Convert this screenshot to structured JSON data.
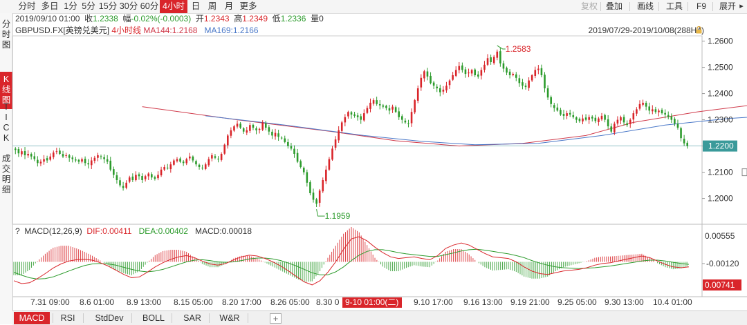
{
  "toolbar": {
    "timeframes": [
      "分时",
      "多日",
      "1分",
      "5分",
      "15分",
      "30分",
      "60分",
      "4小时",
      "日",
      "周",
      "月",
      "更多"
    ],
    "active_timeframe": "4小时",
    "right_tools": {
      "fuquan": "复权",
      "stack": "叠加",
      "draw": "画线",
      "tools": "工具",
      "f9": "F9",
      "expand": "展开"
    },
    "expand_arrow_icon": "chevron-right-icon"
  },
  "ohlc": {
    "datetime": "2019/09/10 01:00",
    "close_label": "收",
    "close": "1.2338",
    "change_label": "幅",
    "change": "-0.02%(-0.0003)",
    "open_label": "开",
    "open": "1.2343",
    "high_label": "高",
    "high": "1.2349",
    "low_label": "低",
    "low": "1.2336",
    "vol_label": "量",
    "vol": "0"
  },
  "sidebar": {
    "tabs": [
      {
        "chars": [
          "分",
          "时",
          "图"
        ],
        "active": false
      },
      {
        "chars": [
          "K",
          "线",
          "图"
        ],
        "active": true
      },
      {
        "chars": [
          "T",
          "I",
          "C",
          "K"
        ],
        "active": false
      },
      {
        "chars": [
          "成",
          "交",
          "明",
          "细"
        ],
        "active": false
      }
    ]
  },
  "legend": {
    "symbol": "GBPUSD.FX",
    "name": "[英镑兑美元]",
    "period": "4小时线",
    "ma144": "MA144:1.2168",
    "ma169": "MA169:1.2166",
    "range": "2019/07/29-2019/10/08(288H4)"
  },
  "macd_legend": {
    "question": "?",
    "title": "MACD(12,26,9)",
    "dif": "DIF:0.00411",
    "dea": "DEA:0.00402",
    "macd": "MACD:0.00018"
  },
  "price_axis": [
    "1.2600",
    "1.2500",
    "1.2400",
    "1.2300",
    "1.2200",
    "1.2100",
    "1.2000"
  ],
  "macd_axis": {
    "top": "0.00555",
    "mid": "-0.00120",
    "current": "0.00741"
  },
  "x_axis": {
    "labels": [
      "7.31 09:00",
      "8.6 01:00",
      "8.9 13:00",
      "8.15 05:00",
      "8.20 17:00",
      "8.26 05:00",
      "8.30 0",
      "9.10 17:00",
      "9.16 13:00",
      "9.19 21:00",
      "9.25 05:00",
      "9.30 13:00",
      "10.4 01:00"
    ],
    "cursor_label": "9-10 01:00(二)"
  },
  "bottom_tabs": {
    "items": [
      "MACD",
      "RSI",
      "StdDev",
      "BOLL",
      "SAR",
      "W&R"
    ],
    "active": "MACD",
    "add_icon": "plus-icon"
  },
  "colors": {
    "up": "#d9252a",
    "down": "#2c9b2c",
    "ma144": "#d03a4a",
    "ma169": "#4a78c8",
    "accent": "#d9252a"
  },
  "chart_data": {
    "type": "candlestick",
    "title": "GBPUSD.FX [英镑兑美元] 4小时线",
    "ylim": [
      1.192,
      1.262
    ],
    "current_price": "1.2200",
    "annotations": [
      {
        "label": "1.2583",
        "value": 1.2583
      },
      {
        "label": "1.1959",
        "value": 1.1959
      }
    ],
    "x_labels": [
      "7.31 09:00",
      "8.6 01:00",
      "8.9 13:00",
      "8.15 05:00",
      "8.20 17:00",
      "8.26 05:00",
      "8.30 0",
      "9.10 17:00",
      "9.16 13:00",
      "9.19 21:00",
      "9.25 05:00",
      "9.30 13:00",
      "10.4 01:00"
    ],
    "close": [
      1.2185,
      1.2172,
      1.218,
      1.2165,
      1.217,
      1.216,
      1.215,
      1.2135,
      1.214,
      1.215,
      1.2145,
      1.216,
      1.2175,
      1.218,
      1.217,
      1.216,
      1.2165,
      1.2155,
      1.215,
      1.2145,
      1.214,
      1.215,
      1.2135,
      1.213,
      1.2145,
      1.2155,
      1.2165,
      1.216,
      1.215,
      1.214,
      1.211,
      1.209,
      1.207,
      1.205,
      1.204,
      1.206,
      1.208,
      1.207,
      1.209,
      1.2085,
      1.207,
      1.2085,
      1.2095,
      1.208,
      1.2075,
      1.209,
      1.211,
      1.212,
      1.2115,
      1.213,
      1.2145,
      1.215,
      1.214,
      1.2135,
      1.215,
      1.216,
      1.2145,
      1.213,
      1.212,
      1.2115,
      1.213,
      1.215,
      1.2165,
      1.2155,
      1.215,
      1.217,
      1.2205,
      1.224,
      1.226,
      1.2275,
      1.2285,
      1.227,
      1.2255,
      1.226,
      1.228,
      1.227,
      1.226,
      1.2265,
      1.229,
      1.227,
      1.2255,
      1.224,
      1.225,
      1.2235,
      1.223,
      1.2215,
      1.22,
      1.219,
      1.217,
      1.214,
      1.212,
      1.21,
      1.206,
      1.202,
      1.1995,
      1.198,
      1.203,
      1.207,
      1.211,
      1.215,
      1.219,
      1.2225,
      1.226,
      1.229,
      1.231,
      1.233,
      1.232,
      1.2315,
      1.231,
      1.23,
      1.2325,
      1.2345,
      1.2365,
      1.2375,
      1.236,
      1.2355,
      1.235,
      1.2345,
      1.2335,
      1.235,
      1.233,
      1.231,
      1.23,
      1.229,
      1.2285,
      1.233,
      1.2375,
      1.242,
      1.246,
      1.2485,
      1.2465,
      1.244,
      1.243,
      1.242,
      1.2405,
      1.2415,
      1.243,
      1.245,
      1.247,
      1.249,
      1.2505,
      1.249,
      1.2475,
      1.248,
      1.249,
      1.247,
      1.2465,
      1.249,
      1.251,
      1.2535,
      1.252,
      1.254,
      1.256,
      1.2515,
      1.2495,
      1.248,
      1.247,
      1.2475,
      1.246,
      1.244,
      1.243,
      1.2425,
      1.245,
      1.247,
      1.249,
      1.2495,
      1.247,
      1.242,
      1.2385,
      1.236,
      1.2345,
      1.2335,
      1.232,
      1.2315,
      1.2325,
      1.232,
      1.231,
      1.23,
      1.2295,
      1.2305,
      1.23,
      1.231,
      1.2305,
      1.2295,
      1.2305,
      1.2315,
      1.23,
      1.2275,
      1.2255,
      1.2285,
      1.23,
      1.231,
      1.229,
      1.228,
      1.23,
      1.2325,
      1.234,
      1.236,
      1.2365,
      1.235,
      1.2335,
      1.234,
      1.233,
      1.2335,
      1.2325,
      1.232,
      1.231,
      1.23,
      1.2285,
      1.227,
      1.223,
      1.221,
      1.22
    ],
    "ma144_points": [
      [
        40,
        1.235
      ],
      [
        70,
        1.23
      ],
      [
        100,
        1.2255
      ],
      [
        120,
        1.222
      ],
      [
        140,
        1.22
      ],
      [
        160,
        1.221
      ],
      [
        180,
        1.224
      ],
      [
        195,
        1.229
      ],
      [
        215,
        1.233
      ],
      [
        235,
        1.236
      ],
      [
        262,
        1.238
      ],
      [
        285,
        1.2388
      ],
      [
        300,
        1.2392
      ]
    ],
    "ma169_points": [
      [
        60,
        1.2315
      ],
      [
        85,
        1.228
      ],
      [
        110,
        1.224
      ],
      [
        128,
        1.2218
      ],
      [
        145,
        1.2205
      ],
      [
        165,
        1.221
      ],
      [
        185,
        1.224
      ],
      [
        205,
        1.228
      ],
      [
        225,
        1.2305
      ],
      [
        245,
        1.232
      ],
      [
        262,
        1.233
      ],
      [
        285,
        1.2333
      ],
      [
        300,
        1.233
      ]
    ],
    "macd_panel": {
      "ylim": [
        -0.0075,
        0.0065
      ],
      "dif": [
        -0.0045,
        -0.0052,
        -0.005,
        -0.004,
        -0.0028,
        -0.0015,
        -0.0005,
        0.0002,
        0.0005,
        0.0006,
        0.0004,
        -0.0002,
        -0.001,
        -0.002,
        -0.003,
        -0.0038,
        -0.0036,
        -0.0025,
        -0.0012,
        -0.0002,
        0.0006,
        0.0012,
        0.0015,
        0.001,
        0.0002,
        -0.0005,
        -0.0008,
        -0.0004,
        0.0005,
        0.0012,
        0.0016,
        0.0014,
        0.0008,
        0.0,
        -0.001,
        -0.0022,
        -0.0035,
        -0.0048,
        -0.0055,
        -0.0045,
        -0.0025,
        0.0,
        0.003,
        0.0055,
        0.006,
        0.005,
        0.0035,
        0.0022,
        0.0012,
        0.0008,
        0.001,
        0.0012,
        0.0008,
        0.0005,
        0.0015,
        0.0032,
        0.004,
        0.0045,
        0.004,
        0.003,
        0.002,
        0.0012,
        0.001,
        0.0008,
        0.0,
        -0.0012,
        -0.0022,
        -0.0028,
        -0.003,
        -0.0026,
        -0.0022,
        -0.002,
        -0.0018,
        -0.0014,
        -0.0008,
        -0.0004,
        -0.0002,
        0.0002,
        0.0006,
        0.001,
        0.0014,
        0.001,
        0.0002,
        -0.0006,
        -0.0012,
        -0.0014,
        -0.0012
      ],
      "dea": [
        -0.0025,
        -0.0032,
        -0.0038,
        -0.0041,
        -0.004,
        -0.0036,
        -0.0029,
        -0.0022,
        -0.0015,
        -0.0009,
        -0.0005,
        -0.0004,
        -0.0005,
        -0.0008,
        -0.0013,
        -0.0018,
        -0.0022,
        -0.0024,
        -0.0022,
        -0.0018,
        -0.0012,
        -0.0006,
        0.0,
        0.0004,
        0.0005,
        0.0003,
        0.0,
        -0.0001,
        0.0,
        0.0003,
        0.0007,
        0.0009,
        0.0009,
        0.0007,
        0.0003,
        -0.0003,
        -0.001,
        -0.0018,
        -0.0026,
        -0.0031,
        -0.0031,
        -0.0024,
        -0.0012,
        0.0003,
        0.0016,
        0.0025,
        0.0029,
        0.0029,
        0.0026,
        0.0022,
        0.0019,
        0.0017,
        0.0015,
        0.0013,
        0.0013,
        0.0017,
        0.0021,
        0.0026,
        0.0029,
        0.003,
        0.0028,
        0.0025,
        0.0022,
        0.0019,
        0.0015,
        0.001,
        0.0003,
        -0.0003,
        -0.0008,
        -0.0012,
        -0.0014,
        -0.0015,
        -0.0016,
        -0.0015,
        -0.0014,
        -0.0012,
        -0.001,
        -0.0007,
        -0.0004,
        -0.0001,
        0.0002,
        0.0004,
        0.0004,
        0.0002,
        -0.0001,
        -0.0004,
        -0.0006
      ]
    }
  }
}
